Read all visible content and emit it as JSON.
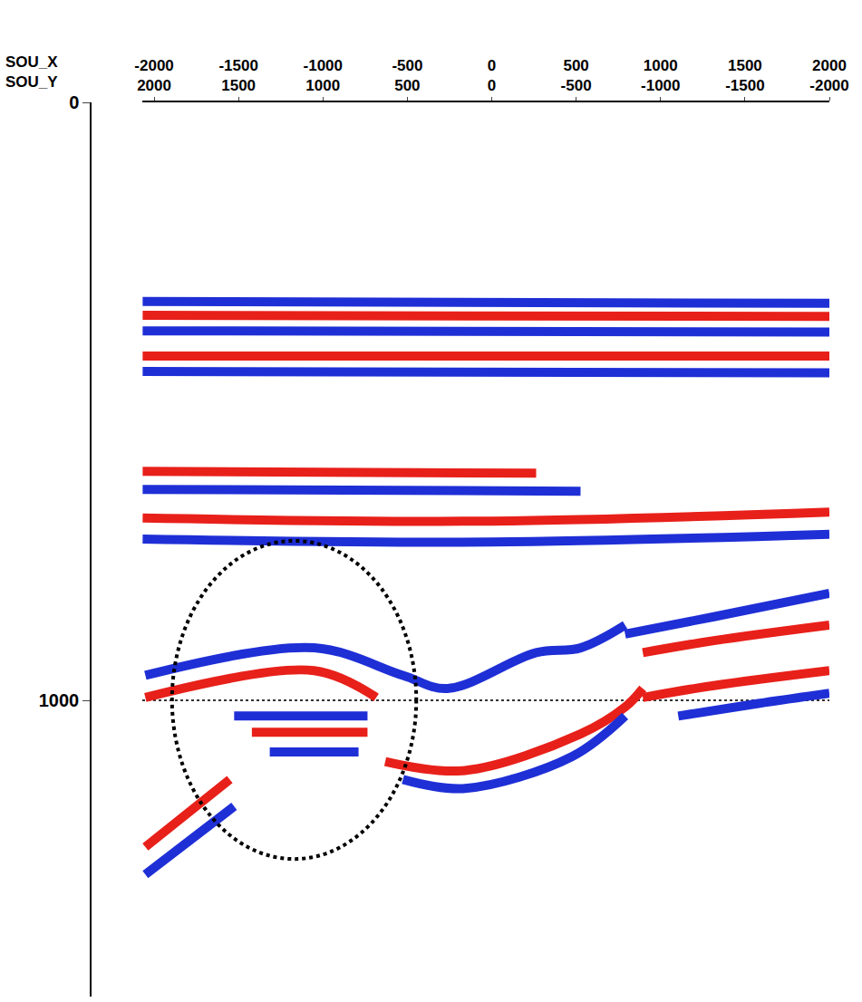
{
  "chart_data": {
    "type": "line",
    "row_labels": [
      "SOU_X",
      "SOU_Y"
    ],
    "xlim": [
      -2070,
      2000
    ],
    "xticks": [
      -2000,
      -1500,
      -1000,
      -500,
      0,
      500,
      1000,
      1500,
      2000
    ],
    "sou_y_labels": [
      2000,
      1500,
      1000,
      500,
      0,
      -500,
      -1000,
      -1500,
      -2000
    ],
    "ylim": [
      0,
      1495
    ],
    "yticks": [
      0,
      1000
    ],
    "grid": true,
    "series": [
      {
        "color": "#1f2fd6",
        "x": [
          -2068,
          2000
        ],
        "values": [
          333,
          336
        ]
      },
      {
        "color": "#e8201a",
        "x": [
          -2068,
          2000
        ],
        "values": [
          356,
          358
        ]
      },
      {
        "color": "#1f2fd6",
        "x": [
          -2068,
          2000
        ],
        "values": [
          382,
          384
        ]
      },
      {
        "color": "#e8201a",
        "x": [
          -2068,
          2000
        ],
        "values": [
          424,
          424
        ]
      },
      {
        "color": "#1f2fd6",
        "x": [
          -2068,
          2000
        ],
        "values": [
          450,
          452
        ]
      },
      {
        "color": "#e8201a",
        "x": [
          -2068,
          263
        ],
        "values": [
          617,
          620
        ]
      },
      {
        "color": "#1f2fd6",
        "x": [
          -2068,
          526
        ],
        "values": [
          647,
          650
        ]
      },
      {
        "color": "#e8201a",
        "x": [
          -2068,
          0,
          2000
        ],
        "values": [
          695,
          700,
          685
        ]
      },
      {
        "color": "#1f2fd6",
        "x": [
          -2068,
          0,
          2000
        ],
        "values": [
          730,
          735,
          722
        ]
      },
      {
        "color": "#1f2fd6",
        "x": [
          790,
          1316,
          2000
        ],
        "values": [
          889,
          860,
          821
        ]
      },
      {
        "color": "#e8201a",
        "x": [
          895,
          1316,
          2000
        ],
        "values": [
          920,
          900,
          874
        ]
      },
      {
        "color": "#e8201a",
        "x": [
          895,
          1316,
          2000
        ],
        "values": [
          995,
          975,
          950
        ]
      },
      {
        "color": "#1f2fd6",
        "x": [
          1105,
          1579,
          2000
        ],
        "values": [
          1026,
          1005,
          988
        ]
      },
      {
        "color": "#1f2fd6",
        "x": [
          -2052,
          -1052,
          -526,
          -263,
          263,
          526,
          790
        ],
        "values": [
          958,
          912,
          958,
          980,
          920,
          912,
          874
        ]
      },
      {
        "color": "#e8201a",
        "x": [
          -2052,
          -1052,
          -684
        ],
        "values": [
          995,
          950,
          995
        ]
      },
      {
        "color": "#e8201a",
        "x": [
          -631,
          -158,
          526,
          790,
          895
        ],
        "values": [
          1102,
          1117,
          1056,
          1011,
          980
        ]
      },
      {
        "color": "#1f2fd6",
        "x": [
          -526,
          -158,
          474,
          790
        ],
        "values": [
          1132,
          1147,
          1094,
          1026
        ]
      },
      {
        "color": "#1f2fd6",
        "x": [
          -1526,
          -736
        ],
        "values": [
          1026,
          1026
        ]
      },
      {
        "color": "#e8201a",
        "x": [
          -1421,
          -736
        ],
        "values": [
          1053,
          1053
        ]
      },
      {
        "color": "#1f2fd6",
        "x": [
          -1315,
          -789
        ],
        "values": [
          1086,
          1086
        ]
      },
      {
        "color": "#e8201a",
        "x": [
          -2052,
          -1552
        ],
        "values": [
          1245,
          1132
        ]
      },
      {
        "color": "#1f2fd6",
        "x": [
          -2052,
          -1526
        ],
        "values": [
          1291,
          1177
        ]
      }
    ],
    "highlight_ellipse": {
      "x": [
        -1894,
        -447
      ],
      "y": [
        733,
        1265
      ]
    }
  }
}
